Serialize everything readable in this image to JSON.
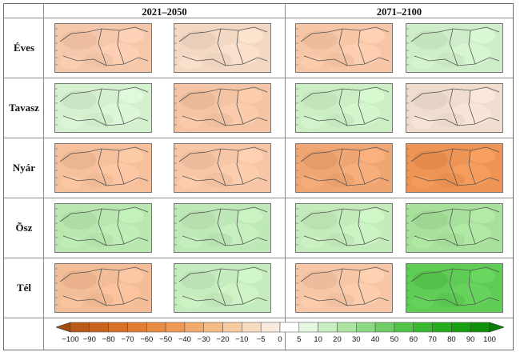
{
  "periods": [
    {
      "label": "2021–2050"
    },
    {
      "label": "2071–2100"
    }
  ],
  "seasons": [
    {
      "label": "Éves",
      "maps": [
        "#f6c8ab",
        "#f3d9c4",
        "#f7c6a7",
        "#cdeec8"
      ]
    },
    {
      "label": "Tavasz",
      "maps": [
        "#d4f0cf",
        "#f4c4a4",
        "#cbeec5",
        "#f1ddd0"
      ]
    },
    {
      "label": "Nyár",
      "maps": [
        "#f5c09b",
        "#f6c6a6",
        "#f0a673",
        "#ee9556"
      ]
    },
    {
      "label": "Õsz",
      "maps": [
        "#b8e7b0",
        "#bfe8b8",
        "#c3ebbc",
        "#a8e19c"
      ]
    },
    {
      "label": "Tél",
      "maps": [
        "#f3bd98",
        "#c5ecbe",
        "#f6c6a6",
        "#5fcc55"
      ]
    }
  ],
  "colorbar": {
    "ticks": [
      "−100",
      "−90",
      "−80",
      "−70",
      "−60",
      "−50",
      "−40",
      "−30",
      "−20",
      "−10",
      "−5",
      "0",
      "5",
      "10",
      "20",
      "30",
      "40",
      "50",
      "60",
      "70",
      "80",
      "90",
      "100"
    ],
    "colors": [
      "#b85a1a",
      "#c96420",
      "#d97027",
      "#e27d34",
      "#e88b44",
      "#ee9a56",
      "#f2ab6c",
      "#f4bb86",
      "#f6cba2",
      "#f8dcc0",
      "#fbeade",
      "#ffffff",
      "#e6f7e2",
      "#c9edc2",
      "#ace3a3",
      "#8ed985",
      "#6fce65",
      "#52c448",
      "#3bb832",
      "#27ab1f",
      "#189e12",
      "#0f910b"
    ],
    "left_arrow_color": "#a34c12",
    "right_arrow_color": "#0a7f08"
  }
}
